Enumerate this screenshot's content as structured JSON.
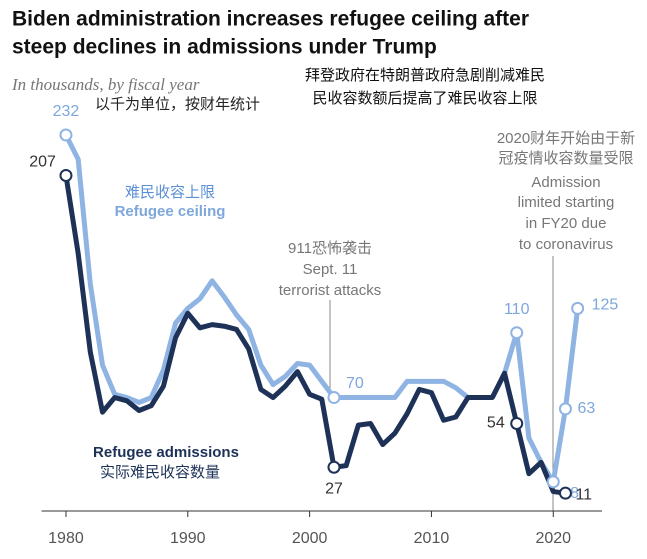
{
  "chart_data": {
    "type": "line",
    "title": [
      "Biden administration increases refugee ceiling after",
      "steep declines in admissions under Trump"
    ],
    "title_zh": [
      "拜登政府在特朗普政府急剧削减难民",
      "民收容数额后提高了难民收容上限"
    ],
    "subtitle": "In thousands, by fiscal year",
    "subtitle_zh": "以千为单位，按财年统计",
    "x": [
      1980,
      1981,
      1982,
      1983,
      1984,
      1985,
      1986,
      1987,
      1988,
      1989,
      1990,
      1991,
      1992,
      1993,
      1994,
      1995,
      1996,
      1997,
      1998,
      1999,
      2000,
      2001,
      2002,
      2003,
      2004,
      2005,
      2006,
      2007,
      2008,
      2009,
      2010,
      2011,
      2012,
      2013,
      2014,
      2015,
      2016,
      2017,
      2018,
      2019,
      2020,
      2021,
      2022
    ],
    "xlim": [
      1978,
      2024
    ],
    "xticks": [
      1980,
      1990,
      2000,
      2010,
      2020
    ],
    "ylim": [
      0,
      240
    ],
    "series": [
      {
        "name": "Refugee ceiling",
        "name_zh": "难民收容上限",
        "color": "#8fb4e3",
        "values": [
          232,
          217,
          140,
          90,
          72,
          70,
          67,
          70,
          87,
          116,
          125,
          131,
          142,
          132,
          121,
          112,
          90,
          78,
          83,
          91,
          90,
          80,
          70,
          70,
          70,
          70,
          70,
          70,
          80,
          80,
          80,
          80,
          76,
          70,
          70,
          70,
          85,
          110,
          45,
          30,
          18,
          63,
          125
        ]
      },
      {
        "name": "Refugee admissions",
        "name_zh": "实际难民收容数量",
        "color": "#1e3258",
        "values": [
          207,
          159,
          98,
          61,
          70,
          68,
          62,
          65,
          77,
          107,
          122,
          113,
          115,
          114,
          112,
          100,
          75,
          70,
          77,
          86,
          72,
          69,
          27,
          28,
          53,
          54,
          41,
          48,
          60,
          75,
          73,
          56,
          58,
          70,
          70,
          70,
          85,
          54,
          23,
          30,
          12,
          11,
          null
        ]
      }
    ],
    "annotations": [
      {
        "lines": [
          "911恐怖袭击",
          "Sept. 11",
          "terrorist attacks"
        ]
      },
      {
        "lines": [
          "2020财年开始由于新",
          "冠疫情收容数量受限",
          "Admission",
          "limited starting",
          "in FY20 due",
          "to coronavirus"
        ]
      }
    ]
  }
}
